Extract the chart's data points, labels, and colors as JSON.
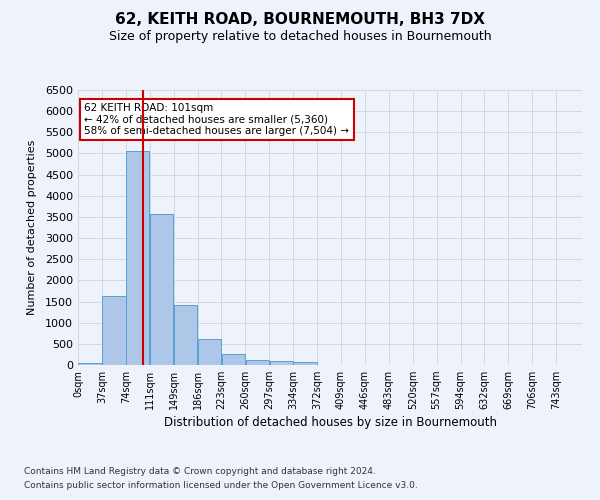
{
  "title": "62, KEITH ROAD, BOURNEMOUTH, BH3 7DX",
  "subtitle": "Size of property relative to detached houses in Bournemouth",
  "xlabel": "Distribution of detached houses by size in Bournemouth",
  "ylabel": "Number of detached properties",
  "footnote1": "Contains HM Land Registry data © Crown copyright and database right 2024.",
  "footnote2": "Contains public sector information licensed under the Open Government Licence v3.0.",
  "annotation_title": "62 KEITH ROAD: 101sqm",
  "annotation_line1": "← 42% of detached houses are smaller (5,360)",
  "annotation_line2": "58% of semi-detached houses are larger (7,504) →",
  "bin_labels": [
    "0sqm",
    "37sqm",
    "74sqm",
    "111sqm",
    "149sqm",
    "186sqm",
    "223sqm",
    "260sqm",
    "297sqm",
    "334sqm",
    "372sqm",
    "409sqm",
    "446sqm",
    "483sqm",
    "520sqm",
    "557sqm",
    "594sqm",
    "632sqm",
    "669sqm",
    "706sqm",
    "743sqm"
  ],
  "bar_values": [
    50,
    1620,
    5050,
    3580,
    1430,
    620,
    270,
    130,
    90,
    60,
    0,
    0,
    0,
    0,
    0,
    0,
    0,
    0,
    0,
    0
  ],
  "bar_color": "#aec6e8",
  "bar_edge_color": "#5a9fd4",
  "vline_x": 101,
  "vline_color": "#cc0000",
  "annotation_box_color": "#ffffff",
  "annotation_box_edge": "#cc0000",
  "grid_color": "#d0d8e8",
  "ylim": [
    0,
    6500
  ],
  "xlim_min": 0,
  "xlim_max": 780,
  "bin_width": 37,
  "background_color": "#eef2fa"
}
